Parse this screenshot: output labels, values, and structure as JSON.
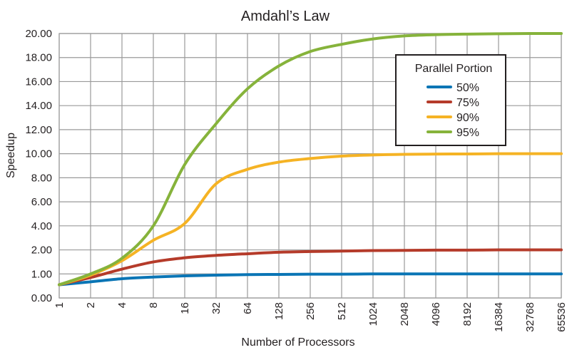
{
  "chart_data": {
    "type": "line",
    "title": "Amdahl’s Law",
    "xlabel": "Number of Processors",
    "ylabel": "Speedup",
    "x_scale": "log2",
    "x_ticks": [
      "1",
      "2",
      "4",
      "8",
      "16",
      "32",
      "64",
      "128",
      "256",
      "512",
      "1024",
      "2048",
      "4096",
      "8192",
      "16384",
      "32768",
      "65536"
    ],
    "x_tick_labels": [
      "1",
      "2",
      "4",
      "8",
      "16",
      "32",
      "64",
      "128",
      "256",
      "512",
      "1024",
      "2048",
      "4096",
      "8192",
      "16384",
      "32768",
      "65536"
    ],
    "y_ticks": [
      0,
      1,
      2,
      4,
      6,
      8,
      10,
      12,
      14,
      16,
      18,
      20
    ],
    "y_tick_labels": [
      "0.00",
      "1.00",
      "2.00",
      "4.00",
      "6.00",
      "8.00",
      "10.00",
      "12.00",
      "14.00",
      "16.00",
      "18.00",
      "20.00"
    ],
    "y_scale_note": "non-uniform axis: equal spacing per tick",
    "ylim": [
      0,
      20
    ],
    "grid": true,
    "legend": {
      "title": "Parallel Portion",
      "placement": "top-right"
    },
    "x": [
      1,
      2,
      4,
      8,
      16,
      32,
      64,
      128,
      256,
      512,
      1024,
      2048,
      4096,
      8192,
      16384,
      32768,
      65536
    ],
    "series": [
      {
        "name": "50%",
        "color": "#0a75b5",
        "values": [
          0.55,
          0.67,
          0.8,
          0.87,
          0.92,
          0.95,
          0.97,
          0.98,
          0.99,
          0.99,
          1.0,
          1.0,
          1.0,
          1.0,
          1.0,
          1.0,
          1.0
        ]
      },
      {
        "name": "75%",
        "color": "#b53b2a",
        "values": [
          0.55,
          0.85,
          1.2,
          1.5,
          1.67,
          1.77,
          1.84,
          1.9,
          1.93,
          1.95,
          1.97,
          1.98,
          1.99,
          1.99,
          2.0,
          2.0,
          2.0
        ]
      },
      {
        "name": "90%",
        "color": "#f5b324",
        "values": [
          0.55,
          0.95,
          1.55,
          2.8,
          4.2,
          7.5,
          8.7,
          9.3,
          9.6,
          9.8,
          9.9,
          9.95,
          9.97,
          9.98,
          10.0,
          10.0,
          10.0
        ]
      },
      {
        "name": "95%",
        "color": "#86b33b",
        "values": [
          0.55,
          1.0,
          1.65,
          4.0,
          9.1,
          12.5,
          15.4,
          17.3,
          18.5,
          19.1,
          19.55,
          19.8,
          19.9,
          19.95,
          19.98,
          20.0,
          20.0
        ]
      }
    ]
  }
}
